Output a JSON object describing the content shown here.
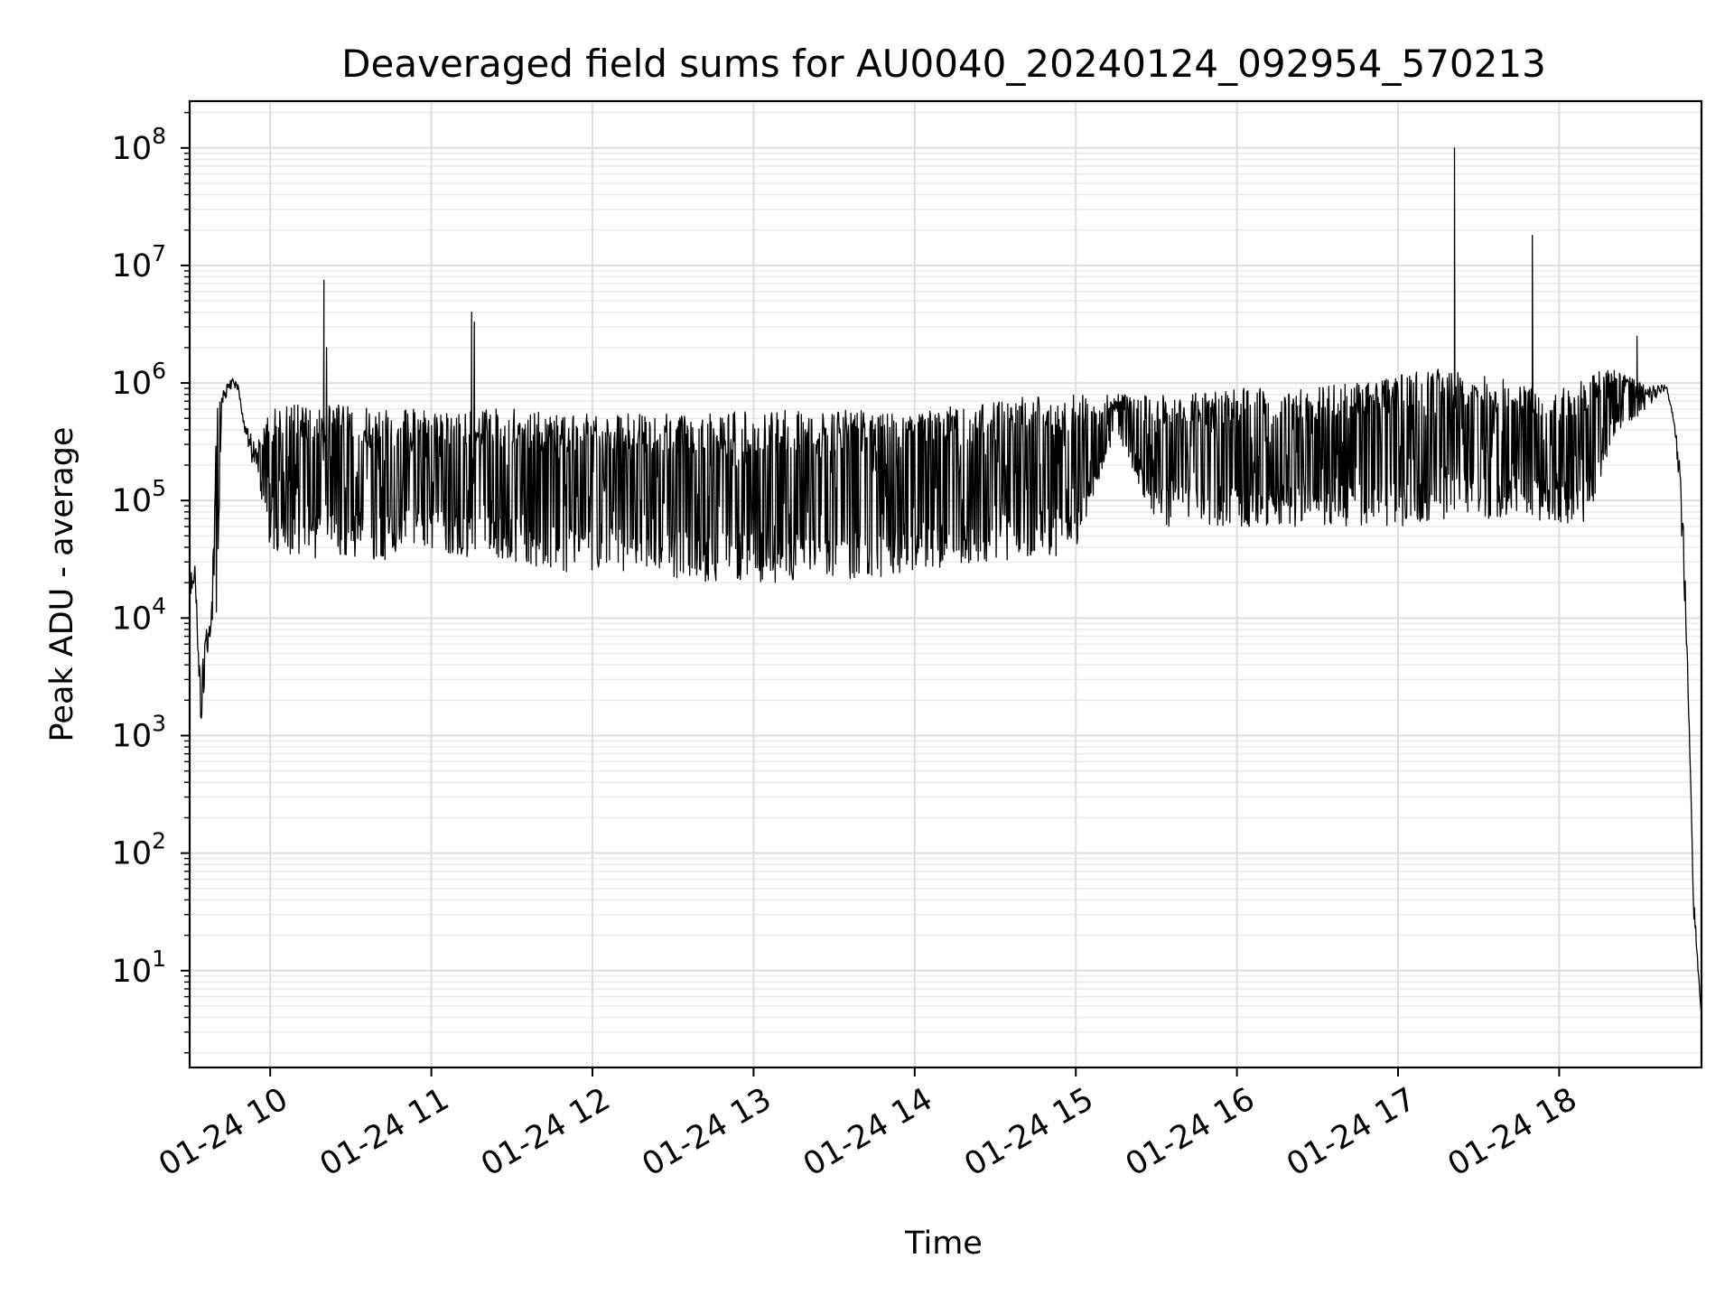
{
  "chart_data": {
    "type": "line",
    "title": "Deaveraged field sums for AU0040_20240124_092954_570213",
    "xlabel": "Time",
    "ylabel": "Peak ADU - average",
    "x_is_time": true,
    "xlim": [
      "01-24 09:30",
      "01-24 18:53"
    ],
    "ylim": [
      1.5,
      250000000
    ],
    "yscale": "log",
    "grid": "major and minor",
    "x_ticks": [
      "01-24 10",
      "01-24 11",
      "01-24 12",
      "01-24 13",
      "01-24 14",
      "01-24 15",
      "01-24 16",
      "01-24 17",
      "01-24 18"
    ],
    "y_ticks": [
      {
        "value": 10,
        "base": "10",
        "exp": "1"
      },
      {
        "value": 100,
        "base": "10",
        "exp": "2"
      },
      {
        "value": 1000,
        "base": "10",
        "exp": "3"
      },
      {
        "value": 10000,
        "base": "10",
        "exp": "4"
      },
      {
        "value": 100000,
        "base": "10",
        "exp": "5"
      },
      {
        "value": 1000000,
        "base": "10",
        "exp": "6"
      },
      {
        "value": 10000000,
        "base": "10",
        "exp": "7"
      },
      {
        "value": 100000000,
        "base": "10",
        "exp": "8"
      }
    ],
    "series": [
      {
        "color": "#000000",
        "envelope": {
          "x": [
            "01-24 09:30",
            "01-24 09:32",
            "01-24 09:34",
            "01-24 09:36",
            "01-24 09:38",
            "01-24 09:40",
            "01-24 09:42",
            "01-24 09:44",
            "01-24 09:46",
            "01-24 09:48",
            "01-24 09:50",
            "01-24 09:52",
            "01-24 09:55",
            "01-24 10:00",
            "01-24 10:05",
            "01-24 10:10",
            "01-24 10:20",
            "01-24 10:30",
            "01-24 10:40",
            "01-24 10:50",
            "01-24 11:00",
            "01-24 11:15",
            "01-24 11:30",
            "01-24 11:45",
            "01-24 12:00",
            "01-24 12:15",
            "01-24 12:30",
            "01-24 12:45",
            "01-24 13:00",
            "01-24 13:15",
            "01-24 13:30",
            "01-24 13:45",
            "01-24 14:00",
            "01-24 14:15",
            "01-24 14:30",
            "01-24 14:45",
            "01-24 15:00",
            "01-24 15:15",
            "01-24 15:30",
            "01-24 15:45",
            "01-24 16:00",
            "01-24 16:15",
            "01-24 16:30",
            "01-24 16:45",
            "01-24 17:00",
            "01-24 17:15",
            "01-24 17:30",
            "01-24 17:45",
            "01-24 18:00",
            "01-24 18:10",
            "01-24 18:20",
            "01-24 18:28",
            "01-24 18:32",
            "01-24 18:36",
            "01-24 18:40",
            "01-24 18:43",
            "01-24 18:45",
            "01-24 18:47",
            "01-24 18:48",
            "01-24 18:49",
            "01-24 18:50",
            "01-24 18:53"
          ],
          "low": [
            15000,
            20000,
            1200,
            3000,
            8000,
            10000,
            600000,
            800000,
            900000,
            850000,
            400000,
            250000,
            150000,
            40000,
            30000,
            30000,
            30000,
            32000,
            30000,
            35000,
            35000,
            32000,
            28000,
            24000,
            24000,
            24000,
            22000,
            20000,
            20000,
            20000,
            21000,
            22000,
            25000,
            28000,
            30000,
            32000,
            35000,
            400000,
            60000,
            60000,
            60000,
            60000,
            60000,
            60000,
            60000,
            70000,
            70000,
            70000,
            65000,
            60000,
            350000,
            500000,
            550000,
            700000,
            900000,
            400000,
            100000,
            10000,
            2000,
            300,
            30,
            4
          ],
          "high": [
            25000,
            28000,
            3000,
            8000,
            10000,
            600000,
            900000,
            1000000,
            1100000,
            1000000,
            500000,
            400000,
            300000,
            600000,
            650000,
            650000,
            650000,
            650000,
            600000,
            600000,
            600000,
            600000,
            600000,
            550000,
            550000,
            550000,
            550000,
            550000,
            600000,
            600000,
            600000,
            600000,
            600000,
            650000,
            700000,
            800000,
            800000,
            800000,
            800000,
            850000,
            900000,
            950000,
            950000,
            1000000,
            1200000,
            1400000,
            1200000,
            1000000,
            900000,
            1200000,
            1300000,
            1100000,
            1000000,
            1000000,
            950000,
            500000,
            200000,
            30000,
            3000,
            400,
            50,
            4
          ]
        },
        "spikes": [
          {
            "x": "01-24 10:20",
            "y": 7500000
          },
          {
            "x": "01-24 10:21",
            "y": 2000000
          },
          {
            "x": "01-24 11:15",
            "y": 4000000
          },
          {
            "x": "01-24 11:16",
            "y": 3300000
          },
          {
            "x": "01-24 17:21",
            "y": 100000000
          },
          {
            "x": "01-24 17:50",
            "y": 18000000
          },
          {
            "x": "01-24 18:29",
            "y": 2500000
          }
        ]
      }
    ]
  }
}
